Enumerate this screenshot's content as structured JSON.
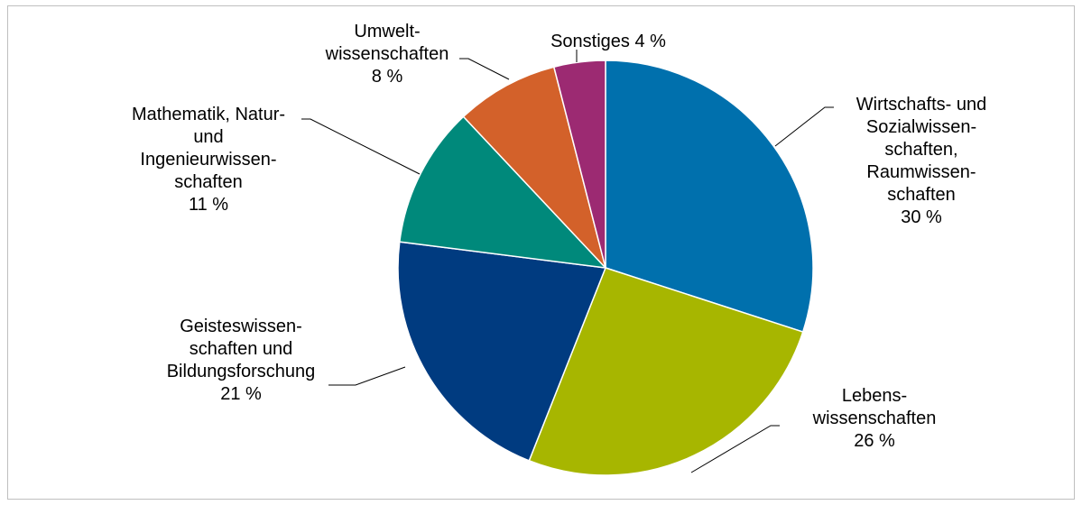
{
  "chart_data": {
    "type": "pie",
    "start_angle_deg": 0,
    "direction": "clockwise",
    "slices": [
      {
        "label": "Wirtschafts- und Sozialwissen-schaften, Raumwissen-schaften",
        "label_lines": [
          "Wirtschafts- und",
          "Sozialwissen-",
          "schaften,",
          "Raumwissen-",
          "schaften"
        ],
        "value": 30,
        "value_label": "30 %",
        "color": "#0070ad"
      },
      {
        "label": "Lebens-wissenschaften",
        "label_lines": [
          "Lebens-",
          "wissenschaften"
        ],
        "value": 26,
        "value_label": "26 %",
        "color": "#a7b600"
      },
      {
        "label": "Geisteswissen-schaften und Bildungsforschung",
        "label_lines": [
          "Geisteswissen-",
          "schaften und",
          "Bildungsforschung"
        ],
        "value": 21,
        "value_label": "21 %",
        "color": "#003b80"
      },
      {
        "label": "Mathematik, Natur- und Ingenieurwissen-schaften",
        "label_lines": [
          "Mathematik, Natur-",
          "und",
          "Ingenieurwissen-",
          "schaften"
        ],
        "value": 11,
        "value_label": "11 %",
        "color": "#00897b"
      },
      {
        "label": "Umwelt-wissenschaften",
        "label_lines": [
          "Umwelt-",
          "wissenschaften"
        ],
        "value": 8,
        "value_label": "8 %",
        "color": "#d3612a"
      },
      {
        "label": "Sonstiges",
        "label_lines": [
          "Sonstiges 4 %"
        ],
        "value": 4,
        "value_label": "",
        "color": "#9c2a72"
      }
    ]
  }
}
